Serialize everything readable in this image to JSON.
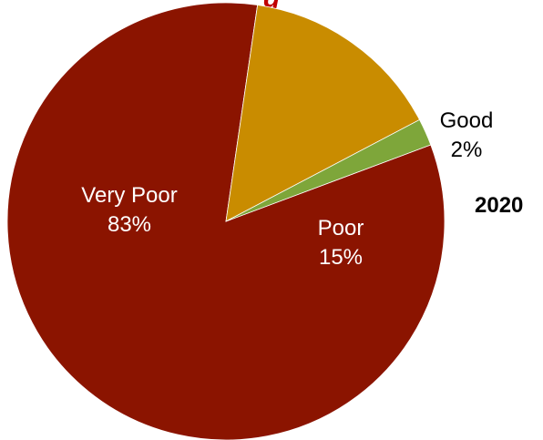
{
  "title_fragment": "g",
  "year_label": "2020",
  "chart_data": {
    "type": "pie",
    "title": "",
    "slices": [
      {
        "label": "Very Poor",
        "value": 83,
        "value_label": "83%",
        "color": "#8b1400",
        "label_color": "#ffffff"
      },
      {
        "label": "Poor",
        "value": 15,
        "value_label": "15%",
        "color": "#c98c00",
        "label_color": "#ffffff"
      },
      {
        "label": "Good",
        "value": 2,
        "value_label": "2%",
        "color": "#7ea63a",
        "label_color": "#000000"
      }
    ],
    "start_angle_deg": 20.5,
    "direction": "clockwise",
    "legend": "none"
  }
}
